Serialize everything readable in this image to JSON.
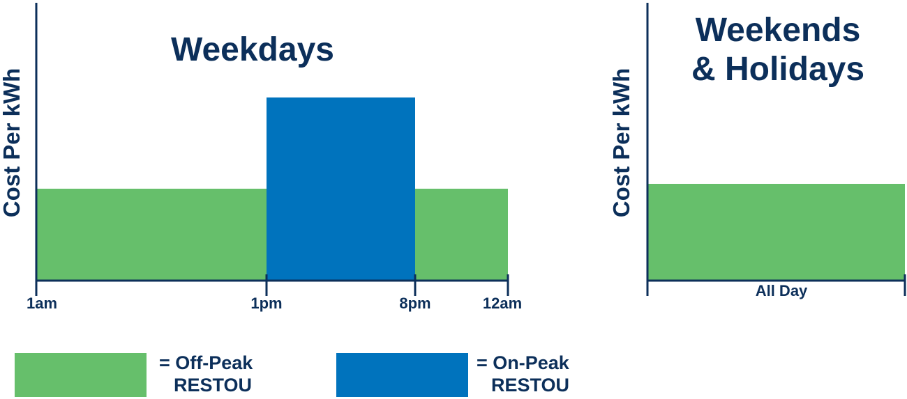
{
  "colors": {
    "off_peak": "#66bf6b",
    "on_peak": "#0073bd",
    "ink": "#0c2f5a"
  },
  "chart_data": [
    {
      "type": "bar",
      "title": "Weekdays",
      "ylabel": "Cost Per kWh",
      "xticks": [
        "1am",
        "1pm",
        "8pm",
        "12am"
      ],
      "segments": [
        {
          "from": "1am",
          "to": "1pm",
          "tier": "off_peak",
          "level": 1
        },
        {
          "from": "1pm",
          "to": "8pm",
          "tier": "on_peak",
          "level": 2
        },
        {
          "from": "8pm",
          "to": "12am",
          "tier": "off_peak",
          "level": 1
        }
      ]
    },
    {
      "type": "bar",
      "title_lines": [
        "Weekends",
        "& Holidays"
      ],
      "ylabel": "Cost Per kWh",
      "xlabel": "All Day",
      "segments": [
        {
          "from": "all_day_start",
          "to": "all_day_end",
          "tier": "off_peak",
          "level": 1
        }
      ]
    }
  ],
  "legend": [
    {
      "tier": "off_peak",
      "line1": "= Off-Peak",
      "line2": "RESTOU"
    },
    {
      "tier": "on_peak",
      "line1": "= On-Peak",
      "line2": "RESTOU"
    }
  ]
}
